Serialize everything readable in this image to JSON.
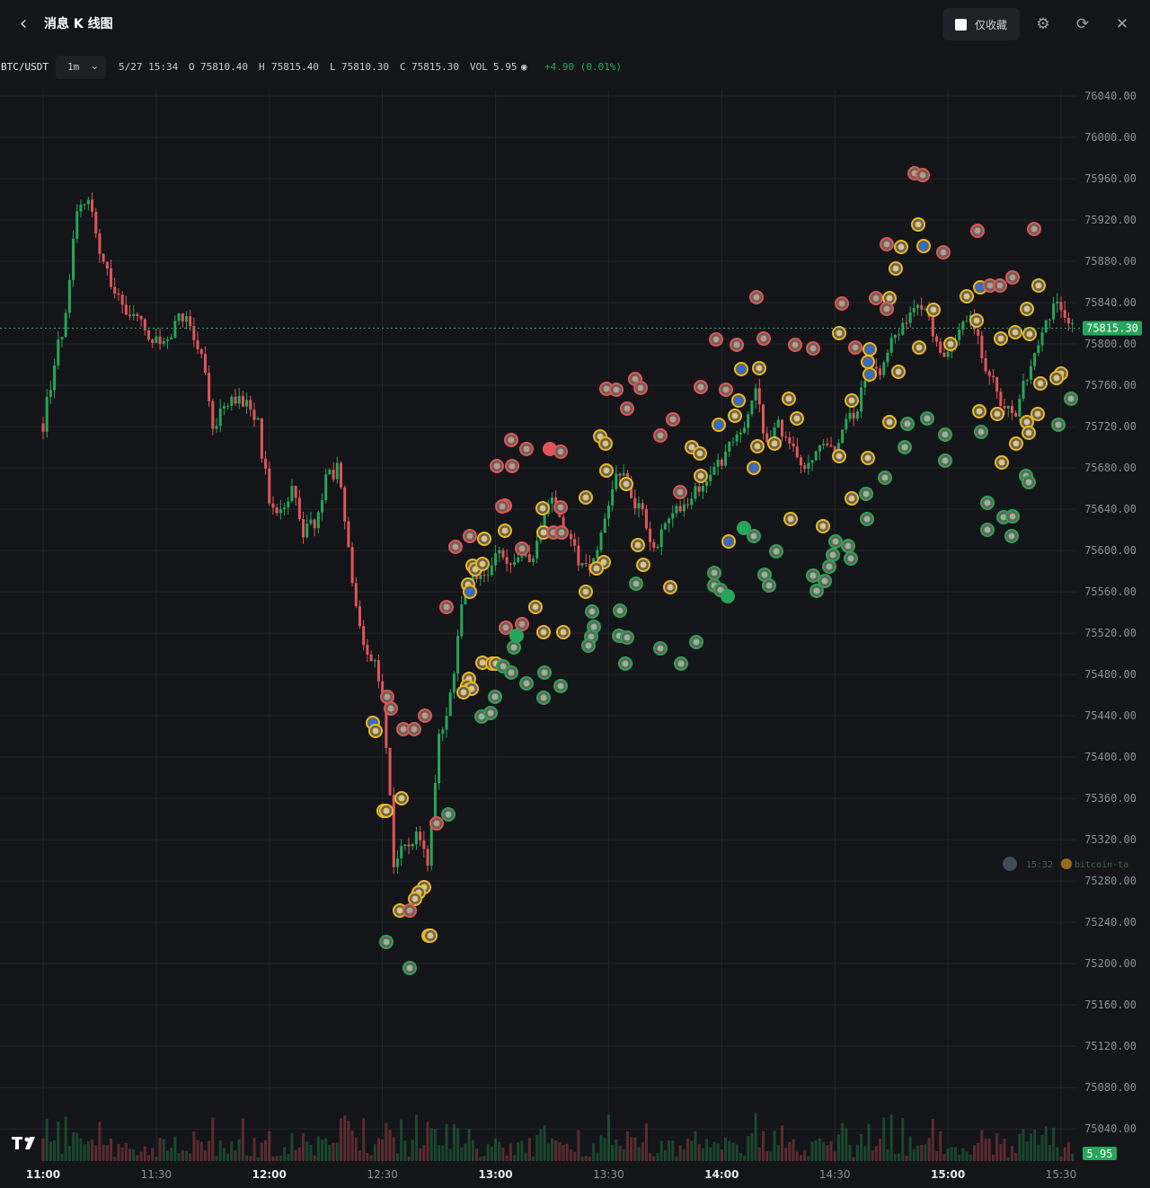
{
  "header": {
    "back_icon": "chevron-left-icon",
    "title": "消息 K 线图",
    "favorites_only_label": "仅收藏",
    "settings_icon": "gear-icon",
    "refresh_icon": "refresh-icon",
    "close_icon": "close-icon"
  },
  "toolbar": {
    "symbol": "BTC/USDT",
    "interval": "1m",
    "datetime": "5/27 15:34",
    "open_label": "O",
    "open": "75810.40",
    "high_label": "H",
    "high": "75815.40",
    "low_label": "L",
    "low": "75810.30",
    "close_label": "C",
    "close": "75815.30",
    "vol_label": "VOL",
    "vol": "5.95",
    "change": "+4.90 (0.01%)"
  },
  "colors": {
    "up": "#26a65b",
    "down": "#e0555b",
    "news_gold": "#e8b923",
    "background": "#141518",
    "grid": "#22242a"
  },
  "chart_data": {
    "type": "candlestick",
    "y_ticks": [
      "76040.00",
      "76000.00",
      "75960.00",
      "75920.00",
      "75880.00",
      "75840.00",
      "75800.00",
      "75760.00",
      "75720.00",
      "75680.00",
      "75640.00",
      "75600.00",
      "75560.00",
      "75520.00",
      "75480.00",
      "75440.00",
      "75400.00",
      "75360.00",
      "75320.00",
      "75280.00",
      "75240.00",
      "75200.00",
      "75160.00",
      "75120.00",
      "75080.00",
      "75040.00"
    ],
    "ylim": [
      75028,
      76040
    ],
    "x_ticks": [
      "11:00",
      "11:30",
      "12:00",
      "12:30",
      "13:00",
      "13:30",
      "14:00",
      "14:30",
      "15:00",
      "15:30"
    ],
    "current_price": "75815.30",
    "current_volume": "5.95",
    "tooltip": {
      "time": "15:32",
      "text": "bitcoin-ta"
    },
    "path": [
      [
        "11:00",
        75723
      ],
      [
        "11:03",
        75780
      ],
      [
        "11:06",
        75830
      ],
      [
        "11:09",
        75930
      ],
      [
        "11:12",
        75945
      ],
      [
        "11:15",
        75880
      ],
      [
        "11:18",
        75860
      ],
      [
        "11:21",
        75830
      ],
      [
        "11:24",
        75830
      ],
      [
        "11:27",
        75810
      ],
      [
        "11:30",
        75800
      ],
      [
        "11:33",
        75800
      ],
      [
        "11:36",
        75830
      ],
      [
        "11:39",
        75820
      ],
      [
        "11:42",
        75790
      ],
      [
        "11:45",
        75720
      ],
      [
        "11:48",
        75740
      ],
      [
        "11:51",
        75750
      ],
      [
        "11:54",
        75740
      ],
      [
        "11:57",
        75720
      ],
      [
        "12:00",
        75650
      ],
      [
        "12:03",
        75640
      ],
      [
        "12:06",
        75660
      ],
      [
        "12:09",
        75620
      ],
      [
        "12:12",
        75625
      ],
      [
        "12:15",
        75670
      ],
      [
        "12:18",
        75680
      ],
      [
        "12:21",
        75600
      ],
      [
        "12:24",
        75520
      ],
      [
        "12:27",
        75500
      ],
      [
        "12:30",
        75470
      ],
      [
        "12:33",
        75300
      ],
      [
        "12:36",
        75310
      ],
      [
        "12:39",
        75330
      ],
      [
        "12:42",
        75300
      ],
      [
        "12:45",
        75420
      ],
      [
        "12:48",
        75460
      ],
      [
        "12:51",
        75540
      ],
      [
        "12:54",
        75580
      ],
      [
        "12:57",
        75570
      ],
      [
        "13:00",
        75600
      ],
      [
        "13:03",
        75590
      ],
      [
        "13:06",
        75600
      ],
      [
        "13:09",
        75590
      ],
      [
        "13:12",
        75620
      ],
      [
        "13:15",
        75650
      ],
      [
        "13:18",
        75620
      ],
      [
        "13:21",
        75600
      ],
      [
        "13:24",
        75580
      ],
      [
        "13:27",
        75600
      ],
      [
        "13:30",
        75640
      ],
      [
        "13:33",
        75680
      ],
      [
        "13:36",
        75650
      ],
      [
        "13:39",
        75640
      ],
      [
        "13:42",
        75600
      ],
      [
        "13:45",
        75620
      ],
      [
        "13:48",
        75640
      ],
      [
        "13:51",
        75650
      ],
      [
        "13:54",
        75660
      ],
      [
        "13:57",
        75680
      ],
      [
        "14:00",
        75690
      ],
      [
        "14:03",
        75710
      ],
      [
        "14:06",
        75720
      ],
      [
        "14:09",
        75760
      ],
      [
        "14:12",
        75700
      ],
      [
        "14:15",
        75720
      ],
      [
        "14:18",
        75700
      ],
      [
        "14:21",
        75680
      ],
      [
        "14:24",
        75690
      ],
      [
        "14:27",
        75700
      ],
      [
        "14:30",
        75690
      ],
      [
        "14:33",
        75720
      ],
      [
        "14:36",
        75740
      ],
      [
        "14:39",
        75780
      ],
      [
        "14:42",
        75770
      ],
      [
        "14:45",
        75800
      ],
      [
        "14:48",
        75820
      ],
      [
        "14:51",
        75840
      ],
      [
        "14:54",
        75830
      ],
      [
        "14:57",
        75800
      ],
      [
        "15:00",
        75790
      ],
      [
        "15:03",
        75810
      ],
      [
        "15:06",
        75830
      ],
      [
        "15:09",
        75790
      ],
      [
        "15:12",
        75760
      ],
      [
        "15:15",
        75740
      ],
      [
        "15:18",
        75730
      ],
      [
        "15:21",
        75770
      ],
      [
        "15:24",
        75800
      ],
      [
        "15:27",
        75830
      ],
      [
        "15:30",
        75840
      ],
      [
        "15:33",
        75815
      ]
    ],
    "news_markers": [
      [
        1018,
        193,
        "r"
      ],
      [
        1027,
        195,
        "r"
      ],
      [
        1022,
        250,
        "g"
      ],
      [
        987,
        272,
        "r"
      ],
      [
        1003,
        275,
        "g"
      ],
      [
        1028,
        274,
        "b"
      ],
      [
        1050,
        281,
        "r"
      ],
      [
        1088,
        257,
        "r"
      ],
      [
        1151,
        255,
        "r"
      ],
      [
        997,
        299,
        "g"
      ],
      [
        842,
        331,
        "r"
      ],
      [
        937,
        338,
        "r"
      ],
      [
        975,
        332,
        "r"
      ],
      [
        990,
        332,
        "g"
      ],
      [
        987,
        344,
        "r"
      ],
      [
        1039,
        345,
        "g"
      ],
      [
        1076,
        330,
        "g"
      ],
      [
        1091,
        320,
        "b"
      ],
      [
        1102,
        318,
        "r"
      ],
      [
        1113,
        318,
        "r"
      ],
      [
        1127,
        309,
        "r"
      ],
      [
        1156,
        318,
        "g"
      ],
      [
        797,
        378,
        "r"
      ],
      [
        820,
        384,
        "r"
      ],
      [
        850,
        377,
        "r"
      ],
      [
        885,
        384,
        "r"
      ],
      [
        905,
        388,
        "r"
      ],
      [
        934,
        371,
        "g"
      ],
      [
        952,
        387,
        "r"
      ],
      [
        968,
        389,
        "b"
      ],
      [
        966,
        403,
        "b"
      ],
      [
        968,
        417,
        "b"
      ],
      [
        1000,
        414,
        "g"
      ],
      [
        1023,
        387,
        "g"
      ],
      [
        1058,
        383,
        "g"
      ],
      [
        1087,
        357,
        "g"
      ],
      [
        1114,
        377,
        "g"
      ],
      [
        1130,
        370,
        "g"
      ],
      [
        1143,
        344,
        "g"
      ],
      [
        1146,
        372,
        "g"
      ],
      [
        1181,
        416,
        "g"
      ],
      [
        675,
        433,
        "r"
      ],
      [
        686,
        434,
        "r"
      ],
      [
        707,
        422,
        "r"
      ],
      [
        713,
        432,
        "r"
      ],
      [
        780,
        431,
        "r"
      ],
      [
        808,
        434,
        "r"
      ],
      [
        825,
        411,
        "b"
      ],
      [
        845,
        410,
        "g"
      ],
      [
        878,
        444,
        "g"
      ],
      [
        948,
        446,
        "g"
      ],
      [
        1176,
        421,
        "g"
      ],
      [
        1158,
        427,
        "g"
      ],
      [
        698,
        455,
        "r"
      ],
      [
        749,
        467,
        "r"
      ],
      [
        800,
        473,
        "b"
      ],
      [
        822,
        446,
        "b"
      ],
      [
        818,
        463,
        "g"
      ],
      [
        887,
        466,
        "g"
      ],
      [
        990,
        470,
        "g"
      ],
      [
        1010,
        472,
        "gr"
      ],
      [
        1032,
        466,
        "gr"
      ],
      [
        1052,
        484,
        "gr"
      ],
      [
        1090,
        458,
        "g"
      ],
      [
        1110,
        461,
        "g"
      ],
      [
        1143,
        470,
        "g"
      ],
      [
        1155,
        461,
        "g"
      ],
      [
        1192,
        444,
        "gr"
      ],
      [
        569,
        490,
        "r"
      ],
      [
        586,
        500,
        "r"
      ],
      [
        612,
        500,
        "rf"
      ],
      [
        624,
        503,
        "r"
      ],
      [
        553,
        519,
        "r"
      ],
      [
        570,
        519,
        "r"
      ],
      [
        668,
        486,
        "g"
      ],
      [
        674,
        494,
        "g"
      ],
      [
        735,
        485,
        "r"
      ],
      [
        770,
        498,
        "g"
      ],
      [
        779,
        505,
        "g"
      ],
      [
        843,
        497,
        "g"
      ],
      [
        862,
        494,
        "g"
      ],
      [
        934,
        508,
        "g"
      ],
      [
        966,
        510,
        "g"
      ],
      [
        1007,
        498,
        "gr"
      ],
      [
        1092,
        481,
        "gr"
      ],
      [
        1115,
        515,
        "g"
      ],
      [
        1131,
        494,
        "g"
      ],
      [
        1145,
        482,
        "g"
      ],
      [
        1178,
        473,
        "gr"
      ],
      [
        1052,
        513,
        "gr"
      ],
      [
        675,
        524,
        "g"
      ],
      [
        697,
        539,
        "g"
      ],
      [
        839,
        521,
        "b"
      ],
      [
        985,
        532,
        "gr"
      ],
      [
        1142,
        530,
        "gr"
      ],
      [
        1145,
        537,
        "gr"
      ],
      [
        562,
        563,
        "r"
      ],
      [
        559,
        564,
        "r"
      ],
      [
        604,
        566,
        "g"
      ],
      [
        624,
        565,
        "r"
      ],
      [
        652,
        554,
        "g"
      ],
      [
        757,
        548,
        "r"
      ],
      [
        780,
        530,
        "g"
      ],
      [
        948,
        555,
        "g"
      ],
      [
        964,
        550,
        "gr"
      ],
      [
        1099,
        560,
        "gr"
      ],
      [
        1117,
        576,
        "gr"
      ],
      [
        1127,
        575,
        "gr"
      ],
      [
        965,
        578,
        "gr"
      ],
      [
        880,
        578,
        "g"
      ],
      [
        507,
        609,
        "r"
      ],
      [
        523,
        597,
        "r"
      ],
      [
        539,
        600,
        "g"
      ],
      [
        562,
        591,
        "g"
      ],
      [
        605,
        593,
        "g"
      ],
      [
        616,
        593,
        "r"
      ],
      [
        625,
        593,
        "r"
      ],
      [
        581,
        611,
        "r"
      ],
      [
        811,
        603,
        "b"
      ],
      [
        828,
        588,
        "gf"
      ],
      [
        839,
        597,
        "gr"
      ],
      [
        916,
        586,
        "g"
      ],
      [
        710,
        607,
        "g"
      ],
      [
        526,
        630,
        "g"
      ],
      [
        529,
        634,
        "g"
      ],
      [
        537,
        628,
        "g"
      ],
      [
        672,
        626,
        "g"
      ],
      [
        664,
        633,
        "g"
      ],
      [
        716,
        629,
        "g"
      ],
      [
        864,
        614,
        "gr"
      ],
      [
        930,
        603,
        "gr"
      ],
      [
        944,
        608,
        "gr"
      ],
      [
        947,
        622,
        "gr"
      ],
      [
        927,
        618,
        "gr"
      ],
      [
        923,
        631,
        "gr"
      ],
      [
        1099,
        590,
        "gr"
      ],
      [
        1126,
        597,
        "gr"
      ],
      [
        521,
        651,
        "g"
      ],
      [
        523,
        659,
        "b"
      ],
      [
        652,
        659,
        "g"
      ],
      [
        708,
        650,
        "gr"
      ],
      [
        746,
        654,
        "g"
      ],
      [
        795,
        638,
        "gr"
      ],
      [
        795,
        652,
        "gr"
      ],
      [
        802,
        657,
        "gr"
      ],
      [
        810,
        664,
        "gf"
      ],
      [
        851,
        640,
        "gr"
      ],
      [
        856,
        652,
        "gr"
      ],
      [
        905,
        641,
        "gr"
      ],
      [
        918,
        647,
        "gr"
      ],
      [
        909,
        658,
        "gr"
      ],
      [
        497,
        676,
        "r"
      ],
      [
        596,
        676,
        "g"
      ],
      [
        659,
        681,
        "gr"
      ],
      [
        690,
        680,
        "gr"
      ],
      [
        563,
        699,
        "r"
      ],
      [
        581,
        695,
        "r"
      ],
      [
        605,
        704,
        "g"
      ],
      [
        627,
        704,
        "g"
      ],
      [
        575,
        708,
        "gf"
      ],
      [
        661,
        698,
        "gr"
      ],
      [
        658,
        709,
        "gr"
      ],
      [
        689,
        708,
        "gr"
      ],
      [
        698,
        710,
        "gr"
      ],
      [
        775,
        715,
        "gr"
      ],
      [
        572,
        721,
        "gr"
      ],
      [
        655,
        719,
        "gr"
      ],
      [
        735,
        722,
        "gr"
      ],
      [
        537,
        738,
        "g"
      ],
      [
        548,
        739,
        "g"
      ],
      [
        552,
        739,
        "g"
      ],
      [
        560,
        742,
        "gr"
      ],
      [
        569,
        749,
        "gr"
      ],
      [
        606,
        749,
        "gr"
      ],
      [
        696,
        739,
        "gr"
      ],
      [
        758,
        739,
        "gr"
      ],
      [
        522,
        756,
        "g"
      ],
      [
        520,
        764,
        "g"
      ],
      [
        525,
        767,
        "g"
      ],
      [
        516,
        771,
        "g"
      ],
      [
        551,
        776,
        "gr"
      ],
      [
        586,
        761,
        "gr"
      ],
      [
        624,
        764,
        "gr"
      ],
      [
        605,
        777,
        "gr"
      ],
      [
        431,
        776,
        "r"
      ],
      [
        435,
        789,
        "r"
      ],
      [
        536,
        798,
        "gr"
      ],
      [
        546,
        794,
        "gr"
      ],
      [
        415,
        805,
        "b"
      ],
      [
        418,
        814,
        "g"
      ],
      [
        449,
        812,
        "r"
      ],
      [
        461,
        812,
        "r"
      ],
      [
        473,
        797,
        "r"
      ],
      [
        427,
        903,
        "g"
      ],
      [
        430,
        903,
        "g"
      ],
      [
        447,
        889,
        "g"
      ],
      [
        486,
        917,
        "r"
      ],
      [
        499,
        907,
        "gr"
      ],
      [
        472,
        988,
        "g"
      ],
      [
        466,
        994,
        "g"
      ],
      [
        462,
        1001,
        "g"
      ],
      [
        445,
        1014,
        "g"
      ],
      [
        456,
        1014,
        "r"
      ],
      [
        477,
        1042,
        "g"
      ],
      [
        479,
        1042,
        "g"
      ],
      [
        430,
        1049,
        "gr"
      ],
      [
        456,
        1078,
        "gr"
      ]
    ]
  }
}
